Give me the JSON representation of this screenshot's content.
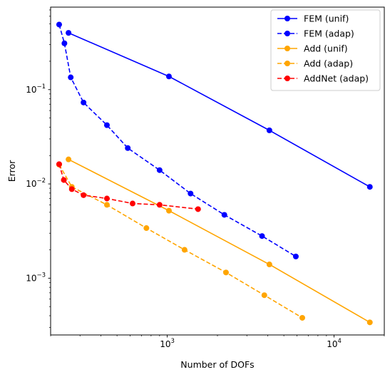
{
  "chart_data": {
    "type": "line",
    "title": "",
    "xlabel": "Number of DOFs",
    "ylabel": "Error",
    "xscale": "log",
    "yscale": "log",
    "xlim": [
      200,
      20000
    ],
    "ylim": [
      0.00025,
      0.75
    ],
    "grid": false,
    "legend_position": "top-right",
    "x_tick_labels": [
      {
        "value": 1000,
        "base": "10",
        "exp": "3"
      },
      {
        "value": 10000,
        "base": "10",
        "exp": "4"
      }
    ],
    "y_tick_labels": [
      {
        "value": 0.001,
        "base": "10",
        "exp": "−3"
      },
      {
        "value": 0.01,
        "base": "10",
        "exp": "−2"
      },
      {
        "value": 0.1,
        "base": "10",
        "exp": "−1"
      }
    ],
    "series": [
      {
        "name": "FEM (unif)",
        "color": "#0000ff",
        "linestyle": "solid",
        "x": [
          256,
          1024,
          4096,
          16384
        ],
        "y": [
          0.4,
          0.138,
          0.037,
          0.0093
        ]
      },
      {
        "name": "FEM (adap)",
        "color": "#0000ff",
        "linestyle": "dashed",
        "x": [
          225,
          242,
          264,
          315,
          435,
          580,
          900,
          1380,
          2200,
          3700,
          5900
        ],
        "y": [
          0.49,
          0.31,
          0.135,
          0.073,
          0.042,
          0.024,
          0.014,
          0.0079,
          0.0047,
          0.0028,
          0.0017
        ]
      },
      {
        "name": "Add (unif)",
        "color": "#ffa500",
        "linestyle": "solid",
        "x": [
          256,
          1024,
          4096,
          16384
        ],
        "y": [
          0.0182,
          0.0052,
          0.0014,
          0.00034
        ]
      },
      {
        "name": "Add (adap)",
        "color": "#ffa500",
        "linestyle": "dashed",
        "x": [
          225,
          268,
          435,
          750,
          1270,
          2250,
          3820,
          6450
        ],
        "y": [
          0.016,
          0.0093,
          0.006,
          0.0034,
          0.002,
          0.00115,
          0.00066,
          0.00038
        ]
      },
      {
        "name": "AddNet (adap)",
        "color": "#ff0000",
        "linestyle": "dashed",
        "x": [
          225,
          240,
          268,
          315,
          435,
          620,
          900,
          1530
        ],
        "y": [
          0.0162,
          0.011,
          0.0088,
          0.0076,
          0.007,
          0.0062,
          0.006,
          0.0054
        ]
      }
    ]
  }
}
